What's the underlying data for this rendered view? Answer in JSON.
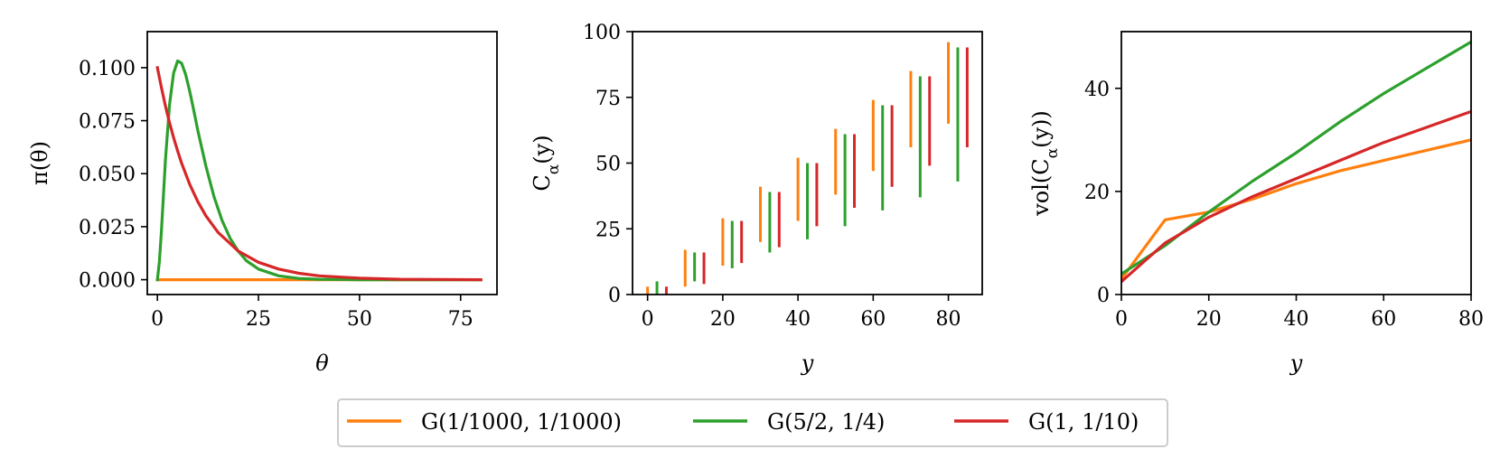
{
  "colors": {
    "orange": "#ff7f0e",
    "green": "#2ca02c",
    "red": "#d62728"
  },
  "legend": [
    {
      "label": "G(1/1000, 1/1000)",
      "color": "#ff7f0e"
    },
    {
      "label": "G(5/2, 1/4)",
      "color": "#2ca02c"
    },
    {
      "label": "G(1, 1/10)",
      "color": "#d62728"
    }
  ],
  "chart_data": [
    {
      "type": "line",
      "xlabel": "θ",
      "ylabel": "π(θ)",
      "xlim": [
        -2.5,
        84
      ],
      "ylim": [
        -0.007,
        0.117
      ],
      "xticks": [
        0,
        25,
        50,
        75
      ],
      "xtick_labels": [
        "0",
        "25",
        "50",
        "75"
      ],
      "yticks": [
        0,
        0.025,
        0.05,
        0.075,
        0.1
      ],
      "ytick_labels": [
        "0.000",
        "0.025",
        "0.050",
        "0.075",
        "0.100"
      ],
      "grid": false,
      "series": [
        {
          "name": "G(1/1000, 1/1000)",
          "color": "#ff7f0e",
          "x": [
            0,
            80
          ],
          "y": [
            0,
            0
          ]
        },
        {
          "name": "G(5/2, 1/4)",
          "color": "#2ca02c",
          "x": [
            0,
            0.5,
            1,
            1.5,
            2,
            3,
            4,
            5,
            6,
            7,
            8,
            9,
            10,
            12,
            14,
            16,
            18,
            20,
            22,
            25,
            30,
            35,
            40,
            50,
            60,
            80
          ],
          "y": [
            0,
            0.0086,
            0.0233,
            0.0399,
            0.0566,
            0.0825,
            0.0974,
            0.1032,
            0.1021,
            0.0967,
            0.0888,
            0.0797,
            0.0704,
            0.0535,
            0.0392,
            0.0279,
            0.0195,
            0.0134,
            0.009,
            0.005,
            0.0018,
            0.0006,
            0.0002,
            0,
            0,
            0
          ]
        },
        {
          "name": "G(1, 1/10)",
          "color": "#d62728",
          "x": [
            0,
            1,
            2,
            3,
            4,
            5,
            6,
            8,
            10,
            12,
            15,
            20,
            25,
            30,
            35,
            40,
            50,
            60,
            70,
            80
          ],
          "y": [
            0.1,
            0.0905,
            0.0819,
            0.0741,
            0.067,
            0.0607,
            0.0549,
            0.0449,
            0.0368,
            0.0301,
            0.0223,
            0.0135,
            0.0082,
            0.005,
            0.003,
            0.0018,
            0.0007,
            0.0002,
            0.0001,
            0
          ]
        }
      ]
    },
    {
      "type": "interval",
      "xlabel": "y",
      "ylabel": "C_α(y)",
      "xlim": [
        -4,
        89
      ],
      "ylim": [
        0,
        100
      ],
      "xticks": [
        0,
        20,
        40,
        60,
        80
      ],
      "xtick_labels": [
        "0",
        "20",
        "40",
        "60",
        "80"
      ],
      "yticks": [
        0,
        25,
        50,
        75,
        100
      ],
      "ytick_labels": [
        "0",
        "25",
        "50",
        "75",
        "100"
      ],
      "grid": false,
      "y_values": [
        0,
        10,
        20,
        30,
        40,
        50,
        60,
        70,
        80
      ],
      "series": [
        {
          "name": "G(1/1000, 1/1000)",
          "color": "#ff7f0e",
          "offset": 0,
          "lower": [
            0,
            3,
            11,
            20,
            28,
            38,
            47,
            56,
            65
          ],
          "upper": [
            3,
            17,
            29,
            41,
            52,
            63,
            74,
            85,
            96
          ]
        },
        {
          "name": "G(5/2, 1/4)",
          "color": "#2ca02c",
          "offset": 2.5,
          "lower": [
            0,
            5,
            10,
            16,
            21,
            26,
            32,
            37,
            43
          ],
          "upper": [
            5,
            16,
            28,
            39,
            50,
            61,
            72,
            83,
            94
          ]
        },
        {
          "name": "G(1, 1/10)",
          "color": "#d62728",
          "offset": 5,
          "lower": [
            0,
            4,
            12,
            18,
            26,
            33,
            41,
            49,
            56
          ],
          "upper": [
            3,
            16,
            28,
            39,
            50,
            61,
            72,
            83,
            94
          ]
        }
      ]
    },
    {
      "type": "line",
      "xlabel": "y",
      "ylabel": "vol(C_α(y))",
      "xlim": [
        0,
        80
      ],
      "ylim": [
        0,
        51
      ],
      "xticks": [
        0,
        20,
        40,
        60,
        80
      ],
      "xtick_labels": [
        "0",
        "20",
        "40",
        "60",
        "80"
      ],
      "yticks": [
        0,
        20,
        40
      ],
      "ytick_labels": [
        "0",
        "20",
        "40"
      ],
      "grid": false,
      "series": [
        {
          "name": "G(1/1000, 1/1000)",
          "color": "#ff7f0e",
          "x": [
            0,
            10,
            20,
            30,
            40,
            50,
            60,
            70,
            80
          ],
          "y": [
            3,
            14.5,
            16,
            18.5,
            21.5,
            24,
            26,
            28,
            30
          ]
        },
        {
          "name": "G(5/2, 1/4)",
          "color": "#2ca02c",
          "x": [
            0,
            10,
            20,
            30,
            40,
            50,
            60,
            70,
            80
          ],
          "y": [
            4,
            9.5,
            16,
            22,
            27.5,
            33.5,
            39,
            44,
            49
          ]
        },
        {
          "name": "G(1, 1/10)",
          "color": "#d62728",
          "x": [
            0,
            10,
            20,
            30,
            40,
            50,
            60,
            70,
            80
          ],
          "y": [
            2.5,
            10,
            15,
            19,
            22.5,
            26,
            29.5,
            32.5,
            35.5
          ]
        }
      ]
    }
  ]
}
